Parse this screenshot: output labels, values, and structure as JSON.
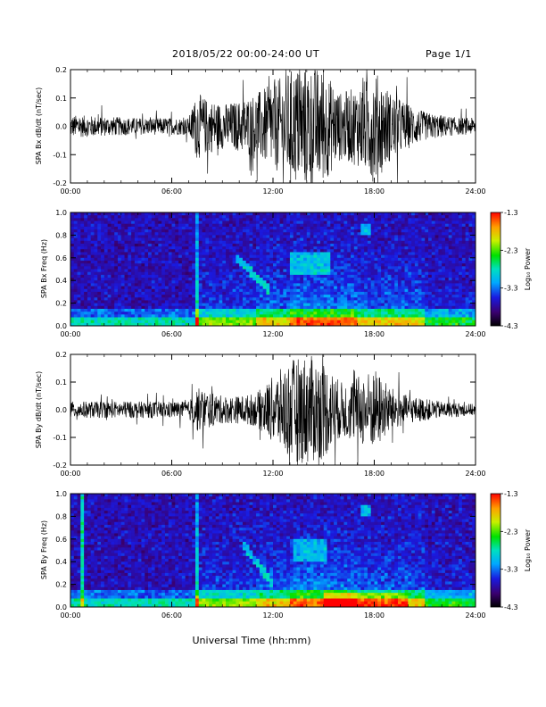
{
  "header": {
    "title": "2018/05/22  00:00-24:00 UT",
    "page": "Page 1/1"
  },
  "footer": {
    "xlabel": "Universal Time (hh:mm)"
  },
  "colorbar": {
    "label": "Log₁₀ Power",
    "ticks": [
      "-1.3",
      "-2.3",
      "-3.3",
      "-4.3"
    ],
    "range": [
      -4.3,
      -1.3
    ]
  },
  "chart_data": [
    {
      "type": "line",
      "title": "",
      "xlabel": "",
      "ylabel": "SPA Bx dB/dt (nT/sec)",
      "xlim": [
        "00:00",
        "24:00"
      ],
      "ylim": [
        -0.2,
        0.2
      ],
      "x_ticks": [
        "00:00",
        "06:00",
        "12:00",
        "18:00",
        "24:00"
      ],
      "y_ticks": [
        "0.2",
        "0.1",
        "0.0",
        "-0.1",
        "-0.2"
      ],
      "amplitude_envelope": {
        "hours": [
          0,
          2,
          4,
          6,
          7,
          7.5,
          8,
          9,
          10,
          11,
          12,
          13,
          14,
          15,
          16,
          17,
          18,
          19,
          20,
          21,
          22,
          23,
          24
        ],
        "amp": [
          0.04,
          0.035,
          0.03,
          0.03,
          0.03,
          0.12,
          0.1,
          0.08,
          0.09,
          0.12,
          0.15,
          0.2,
          0.22,
          0.2,
          0.12,
          0.14,
          0.2,
          0.12,
          0.08,
          0.05,
          0.04,
          0.03,
          0.03
        ]
      }
    },
    {
      "type": "heatmap",
      "title": "",
      "ylabel": "SPA Bx Freq (Hz)",
      "xlim": [
        "00:00",
        "24:00"
      ],
      "ylim": [
        0.0,
        1.0
      ],
      "x_ticks": [
        "00:00",
        "06:00",
        "12:00",
        "18:00",
        "24:00"
      ],
      "y_ticks": [
        "1.0",
        "0.8",
        "0.6",
        "0.4",
        "0.2",
        "0.0"
      ],
      "zlabel": "Log₁₀ Power",
      "zlim": [
        -4.3,
        -1.3
      ]
    },
    {
      "type": "line",
      "title": "",
      "ylabel": "SPA By dB/dt (nT/sec)",
      "xlim": [
        "00:00",
        "24:00"
      ],
      "ylim": [
        -0.2,
        0.2
      ],
      "x_ticks": [
        "00:00",
        "06:00",
        "12:00",
        "18:00",
        "24:00"
      ],
      "y_ticks": [
        "0.2",
        "0.1",
        "0.0",
        "-0.1",
        "-0.2"
      ],
      "amplitude_envelope": {
        "hours": [
          0,
          2,
          4,
          6,
          7,
          7.5,
          8,
          9,
          10,
          11,
          12,
          13,
          14,
          15,
          16,
          17,
          18,
          19,
          20,
          21,
          22,
          23,
          24
        ],
        "amp": [
          0.03,
          0.03,
          0.03,
          0.03,
          0.03,
          0.08,
          0.07,
          0.05,
          0.05,
          0.06,
          0.12,
          0.18,
          0.2,
          0.18,
          0.1,
          0.12,
          0.15,
          0.08,
          0.05,
          0.04,
          0.03,
          0.025,
          0.02
        ]
      }
    },
    {
      "type": "heatmap",
      "title": "",
      "ylabel": "SPA By Freq (Hz)",
      "xlim": [
        "00:00",
        "24:00"
      ],
      "ylim": [
        0.0,
        1.0
      ],
      "x_ticks": [
        "00:00",
        "06:00",
        "12:00",
        "18:00",
        "24:00"
      ],
      "y_ticks": [
        "1.0",
        "0.8",
        "0.6",
        "0.4",
        "0.2",
        "0.0"
      ],
      "zlabel": "Log₁₀ Power",
      "zlim": [
        -4.3,
        -1.3
      ]
    }
  ]
}
